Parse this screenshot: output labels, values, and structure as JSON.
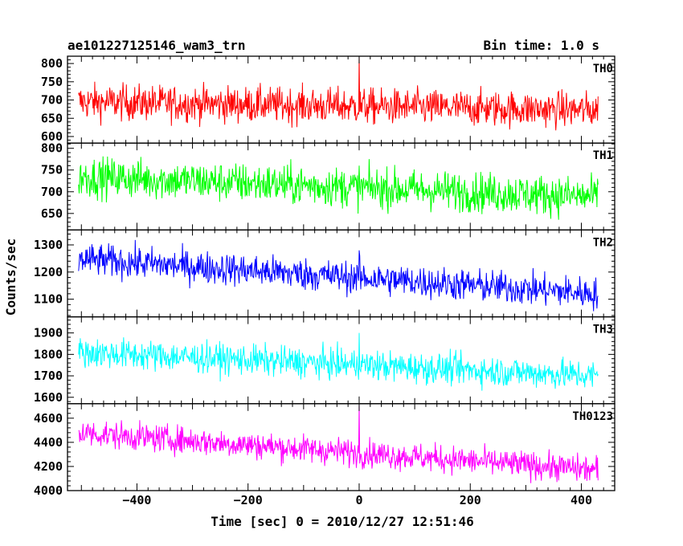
{
  "chart_data": {
    "type": "line",
    "title": "ae101227125146_wam3_trn",
    "subtitle": "Bin time: 1.0 s",
    "xlabel": "Time [sec] 0 = 2010/12/27 12:51:46",
    "ylabel": "Counts/sec",
    "xlim": [
      -525,
      460
    ],
    "xticks": [
      -400,
      -200,
      0,
      200,
      400
    ],
    "x_range_data": [
      -505,
      430
    ],
    "bin_time": 1.0,
    "grid": false,
    "legend": "none",
    "panels": [
      {
        "name": "TH0",
        "color": "#ff0000",
        "ylim": [
          582,
          820
        ],
        "yticks": [
          600,
          650,
          700,
          750,
          800
        ],
        "trend_start": 695,
        "trend_end": 672,
        "noise": 45,
        "spike_at_0": 820
      },
      {
        "name": "TH1",
        "color": "#00ff00",
        "ylim": [
          612,
          812
        ],
        "yticks": [
          650,
          700,
          750,
          800
        ],
        "trend_start": 735,
        "trend_end": 688,
        "noise": 42,
        "spike_at_0": 760
      },
      {
        "name": "TH2",
        "color": "#0000ff",
        "ylim": [
          1035,
          1355
        ],
        "yticks": [
          1100,
          1200,
          1300
        ],
        "trend_start": 1248,
        "trend_end": 1120,
        "noise": 55,
        "spike_at_0": 1280
      },
      {
        "name": "TH3",
        "color": "#00ffff",
        "ylim": [
          1570,
          1975
        ],
        "yticks": [
          1600,
          1700,
          1800,
          1900
        ],
        "trend_start": 1810,
        "trend_end": 1700,
        "noise": 65,
        "spike_at_0": 1900
      },
      {
        "name": "TH0123",
        "color": "#ff00ff",
        "ylim": [
          4000,
          4720
        ],
        "yticks": [
          4000,
          4200,
          4400,
          4600
        ],
        "trend_start": 4480,
        "trend_end": 4170,
        "noise": 105,
        "spike_at_0": 4720
      }
    ]
  }
}
